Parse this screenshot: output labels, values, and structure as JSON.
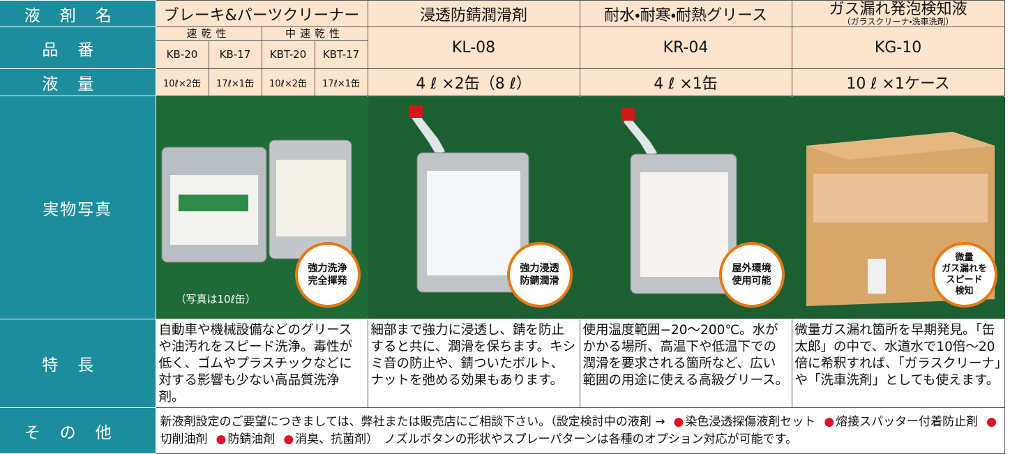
{
  "labels": [
    "液剤名",
    "品番",
    "液量",
    "実物写真",
    "特長",
    "その他"
  ],
  "products": [
    {
      "name": "ブレーキ&パーツクリーナー",
      "groups": [
        "速乾性",
        "中速乾性"
      ],
      "codes": [
        "KB-20",
        "KB-17",
        "KBT-20",
        "KBT-17"
      ],
      "volumes": [
        "10ℓ×2缶",
        "17ℓ×1缶",
        "10ℓ×2缶",
        "17ℓ×1缶"
      ],
      "badge": [
        "強力洗浄",
        "完全揮発"
      ],
      "note": "（写真は10ℓ缶）",
      "feature": "自動車や機械設備などのグリースや油汚れをスピード洗浄。毒性が低く、ゴムやプラスチックなどに対する影響も少ない高品質洗浄剤。"
    },
    {
      "name": "浸透防錆潤滑剤",
      "code": "KL-08",
      "volume": "4 ℓ ×2缶（8 ℓ）",
      "badge": [
        "強力浸透",
        "防錆潤滑"
      ],
      "feature": "細部まで強力に浸透し、錆を防止すると共に、潤滑を保ちます。キシミ音の防止や、錆ついたボルト、ナットを弛める効果もあります。"
    },
    {
      "name": "耐水・耐寒・耐熱グリース",
      "code": "KR-04",
      "volume": "4 ℓ ×1缶",
      "badge": [
        "屋外環境",
        "使用可能"
      ],
      "feature": "使用温度範囲−20〜200℃。水がかかる場所、高温下や低温下での潤滑を要求される箇所など、広い範囲の用途に使える高級グリース。"
    },
    {
      "name": "ガス漏れ発泡検知液",
      "subname": "（ガラスクリーナ・洗車洗剤）",
      "code": "KG-10",
      "volume": "10 ℓ ×1ケース",
      "badge": [
        "微量",
        "ガス漏れを",
        "スピード",
        "検知"
      ],
      "feature": "微量ガス漏れ箇所を早期発見。「缶太郎」の中で、水道水で10倍〜20倍に希釈すれば、「ガラスクリーナ」や「洗車洗剤」としても使えます。"
    }
  ],
  "other": {
    "intro": "新液剤設定のご要望につきましては、弊社または販売店にご相談下さい。（設定検討中の液剤 →",
    "items": [
      "染色浸透探傷液剤セット",
      "熔接スパッター付着防止剤",
      "切削油剤",
      "防錆油剤",
      "消臭、抗菌剤"
    ],
    "outro": "）　ノズルボタンの形状やスプレーパターンは各種のオプション対応が可能です。"
  }
}
